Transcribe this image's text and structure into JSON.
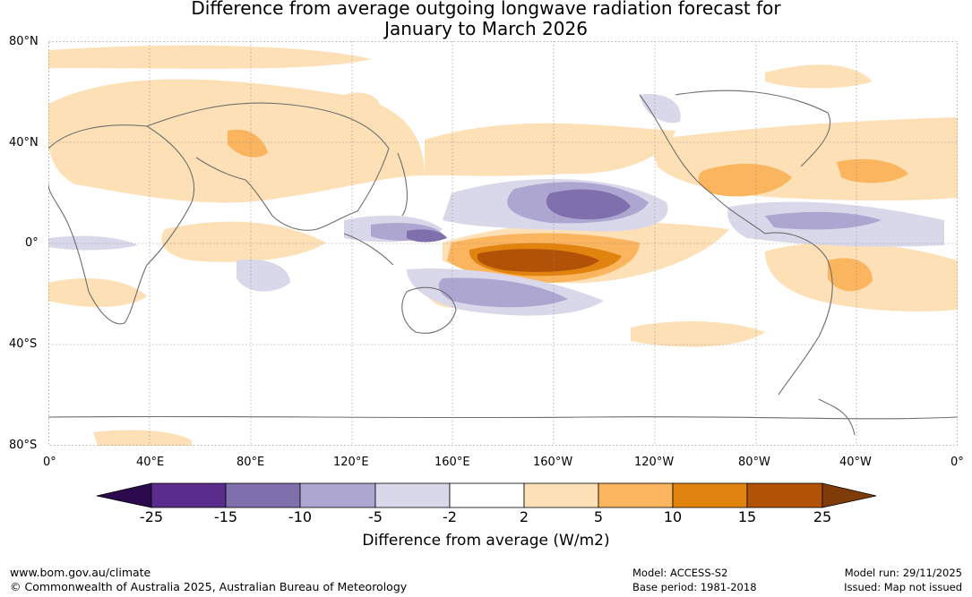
{
  "title": {
    "line1": "Difference from average outgoing longwave radiation forecast for",
    "line2": "January to March 2026"
  },
  "axes": {
    "lat_labels": [
      "80°N",
      "40°N",
      "0°",
      "40°S",
      "80°S"
    ],
    "lon_labels": [
      "0°",
      "40°E",
      "80°E",
      "120°E",
      "160°E",
      "160°W",
      "120°W",
      "80°W",
      "40°W",
      "0°"
    ]
  },
  "legend": {
    "title": "Difference from average (W/m2)",
    "ticks": [
      "-25",
      "-15",
      "-10",
      "-5",
      "-2",
      "2",
      "5",
      "10",
      "15",
      "25"
    ],
    "colors": [
      "#2d0a4e",
      "#5a2d8c",
      "#7f6fad",
      "#aca6d0",
      "#d9d8ea",
      "#ffffff",
      "#fde0b6",
      "#fbb55f",
      "#e0830f",
      "#b25206",
      "#7f3b08"
    ]
  },
  "footer": {
    "website": "www.bom.gov.au/climate",
    "copyright": "© Commonwealth of Australia 2025, Australian Bureau of Meteorology",
    "model": "Model: ACCESS-S2",
    "base_period": "Base period: 1981-2018",
    "model_run": "Model run: 29/11/2025",
    "issued": "Issued: Map not issued"
  }
}
